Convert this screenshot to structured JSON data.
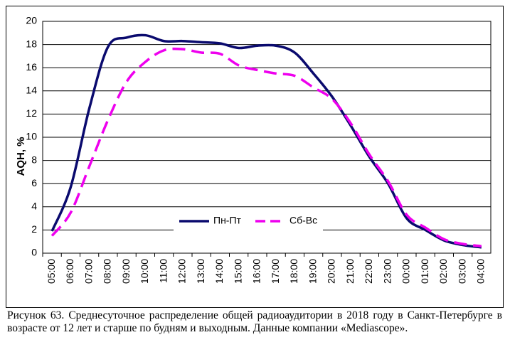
{
  "chart_data": {
    "type": "line",
    "ylabel": "AQH, %",
    "categories": [
      "05:00",
      "06:00",
      "07:00",
      "08:00",
      "09:00",
      "10:00",
      "11:00",
      "12:00",
      "13:00",
      "14:00",
      "15:00",
      "16:00",
      "17:00",
      "18:00",
      "19:00",
      "20:00",
      "21:00",
      "22:00",
      "23:00",
      "00:00",
      "01:00",
      "02:00",
      "03:00",
      "04:00"
    ],
    "series": [
      {
        "name": "Пн-Пт",
        "color": "#0a0a6e",
        "dash": false,
        "values": [
          1.9,
          5.7,
          12.5,
          17.8,
          18.6,
          18.8,
          18.3,
          18.3,
          18.2,
          18.1,
          17.7,
          17.9,
          17.9,
          17.3,
          15.5,
          13.5,
          11,
          8.3,
          6,
          3,
          2,
          1.1,
          0.7,
          0.5
        ]
      },
      {
        "name": "Сб-Вс",
        "color": "#ee00ee",
        "dash": true,
        "values": [
          1.5,
          3.5,
          7.5,
          11.5,
          14.8,
          16.5,
          17.5,
          17.6,
          17.3,
          17.2,
          16.2,
          15.8,
          15.5,
          15.3,
          14.3,
          13.3,
          11.2,
          8.5,
          6.2,
          3.3,
          2.2,
          1.2,
          0.8,
          0.6
        ]
      }
    ],
    "ylim": [
      0,
      20
    ],
    "yticks": [
      0,
      2,
      4,
      6,
      8,
      10,
      12,
      14,
      16,
      18,
      20
    ],
    "grid": true,
    "legend": "bottom-center"
  },
  "caption": "Рисунок 63. Среднесуточное распределение общей радиоаудитории в 2018 году в Санкт-Петербурге в возрасте от 12 лет и старше по будням и выходным. Данные компании «Mediascope»."
}
